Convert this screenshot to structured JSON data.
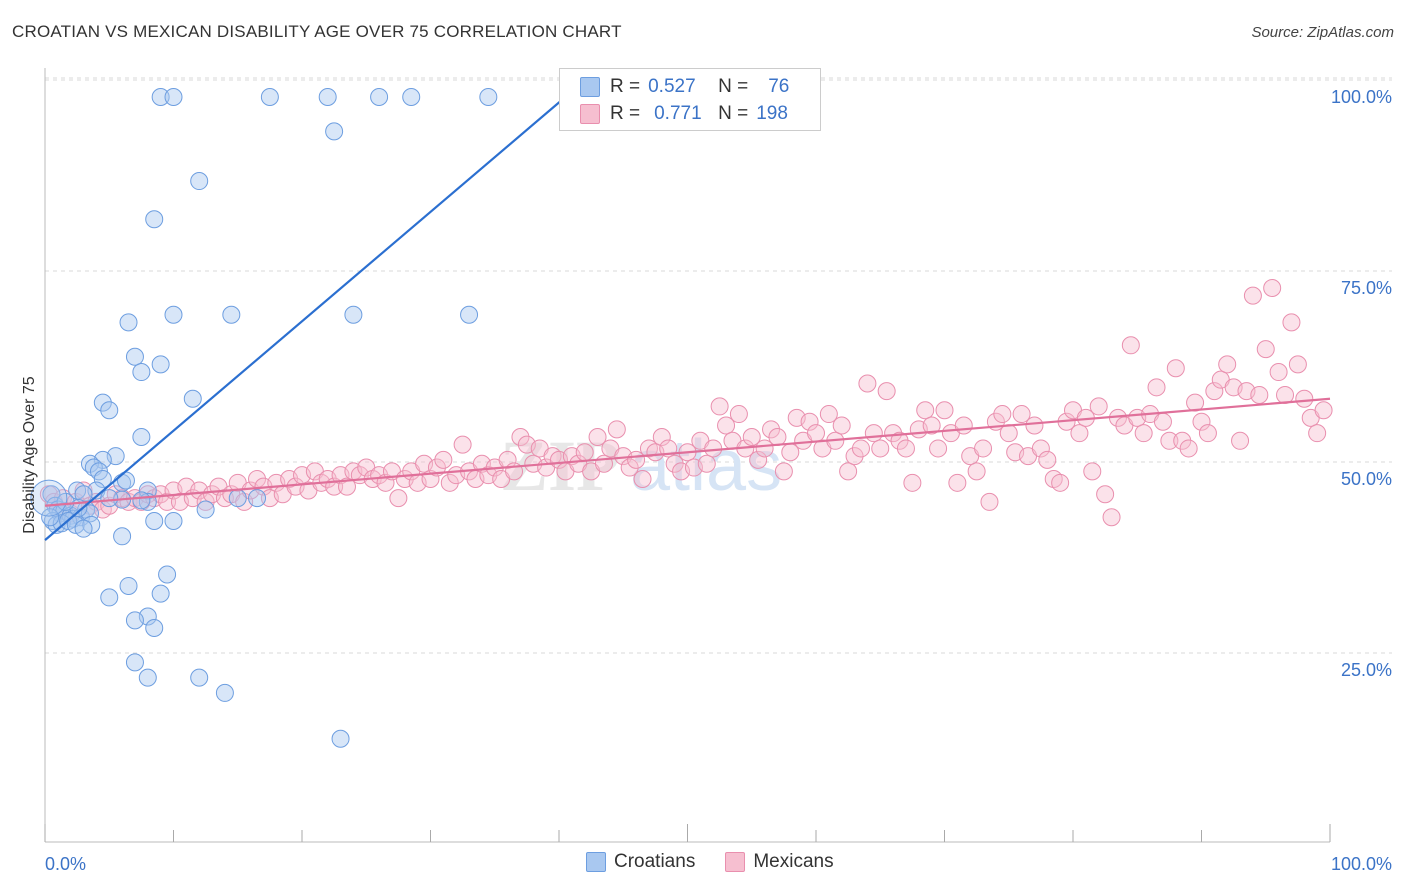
{
  "title": "CROATIAN VS MEXICAN DISABILITY AGE OVER 75 CORRELATION CHART",
  "source_label": "Source: ZipAtlas.com",
  "watermark": {
    "zip": "ZIP",
    "atlas": "atlas"
  },
  "colors": {
    "croatian_fill": "#a9c8f0",
    "croatian_stroke": "#6d9ee0",
    "croatian_line": "#2b6fd0",
    "mexican_fill": "#f6bfd0",
    "mexican_stroke": "#e98fae",
    "mexican_line": "#e0709a",
    "value_text": "#3b73c7",
    "grid": "#d8d8d8"
  },
  "legend": {
    "rows": [
      {
        "r_label": "R =",
        "r_value": "0.527",
        "n_label": "N =",
        "n_value": "76"
      },
      {
        "r_label": "R =",
        "r_value": "0.771",
        "n_label": "N =",
        "n_value": "198"
      }
    ]
  },
  "bottom_legend": {
    "croatians": "Croatians",
    "mexicans": "Mexicans"
  },
  "chart_data": {
    "type": "scatter",
    "title": "CROATIAN VS MEXICAN DISABILITY AGE OVER 75 CORRELATION CHART",
    "xlabel": "",
    "ylabel": "Disability Age Over 75",
    "xlim": [
      0,
      100
    ],
    "ylim": [
      0,
      105
    ],
    "x_tick_labels": [
      "0.0%",
      "100.0%"
    ],
    "y_tick_labels": [
      "25.0%",
      "50.0%",
      "75.0%",
      "100.0%"
    ],
    "y_ticks": [
      25,
      50,
      75,
      100
    ],
    "grid": true,
    "legend_position": "top-center",
    "series": [
      {
        "name": "Croatians",
        "r": 0.527,
        "n": 76,
        "trend": {
          "x0": 0,
          "y0": 42,
          "x1": 40.5,
          "y1": 100
        },
        "points": [
          [
            9,
            100
          ],
          [
            10,
            100
          ],
          [
            17.5,
            100
          ],
          [
            22,
            100
          ],
          [
            26,
            100
          ],
          [
            28.5,
            100
          ],
          [
            34.5,
            100
          ],
          [
            22.5,
            95.5
          ],
          [
            12,
            89
          ],
          [
            8.5,
            84
          ],
          [
            10,
            71.5
          ],
          [
            14.5,
            71.5
          ],
          [
            24,
            71.5
          ],
          [
            33,
            71.5
          ],
          [
            6.5,
            70.5
          ],
          [
            7,
            66
          ],
          [
            9,
            65
          ],
          [
            7.5,
            64
          ],
          [
            11.5,
            60.5
          ],
          [
            4.5,
            60
          ],
          [
            5,
            59
          ],
          [
            7.5,
            55.5
          ],
          [
            5.5,
            53
          ],
          [
            4.5,
            52.5
          ],
          [
            3.5,
            52
          ],
          [
            3.8,
            51.5
          ],
          [
            4.2,
            51
          ],
          [
            6,
            49.5
          ],
          [
            4.5,
            50
          ],
          [
            6.3,
            49.8
          ],
          [
            4,
            48.5
          ],
          [
            8,
            48.5
          ],
          [
            2.5,
            48.5
          ],
          [
            3,
            48
          ],
          [
            16.5,
            47.5
          ],
          [
            15,
            47.5
          ],
          [
            12.5,
            46
          ],
          [
            0.5,
            48
          ],
          [
            0.8,
            46.5
          ],
          [
            1,
            46
          ],
          [
            1.2,
            45.5
          ],
          [
            1.5,
            45.8
          ],
          [
            2,
            45.2
          ],
          [
            2.2,
            44.8
          ],
          [
            2.8,
            45
          ],
          [
            3.2,
            46
          ],
          [
            3.5,
            45.5
          ],
          [
            0.6,
            44.5
          ],
          [
            0.9,
            44
          ],
          [
            1.3,
            44.2
          ],
          [
            1.8,
            44.5
          ],
          [
            2.4,
            44
          ],
          [
            3.6,
            44
          ],
          [
            0.4,
            45
          ],
          [
            2.6,
            46.2
          ],
          [
            1.6,
            47
          ],
          [
            8,
            47
          ],
          [
            7.5,
            47.2
          ],
          [
            6,
            47.3
          ],
          [
            5,
            47.5
          ],
          [
            8.5,
            44.5
          ],
          [
            10,
            44.5
          ],
          [
            3,
            43.5
          ],
          [
            6,
            42.5
          ],
          [
            9.5,
            37.5
          ],
          [
            6.5,
            36
          ],
          [
            5,
            34.5
          ],
          [
            9,
            35
          ],
          [
            8,
            32
          ],
          [
            7,
            31.5
          ],
          [
            8.5,
            30.5
          ],
          [
            7,
            26
          ],
          [
            8,
            24
          ],
          [
            12,
            24
          ],
          [
            14,
            22
          ],
          [
            23,
            16
          ]
        ]
      },
      {
        "name": "Mexicans",
        "r": 0.771,
        "n": 198,
        "trend": {
          "x0": 0,
          "y0": 46.5,
          "x1": 100,
          "y1": 60.5
        },
        "points": [
          [
            0.3,
            48
          ],
          [
            0.7,
            47
          ],
          [
            1,
            46
          ],
          [
            1.4,
            47.5
          ],
          [
            2,
            45.5
          ],
          [
            2.4,
            47
          ],
          [
            3,
            48.5
          ],
          [
            3.5,
            46.5
          ],
          [
            4,
            47
          ],
          [
            4.5,
            46
          ],
          [
            5,
            46.5
          ],
          [
            5.5,
            48
          ],
          [
            6,
            47.5
          ],
          [
            6.5,
            47
          ],
          [
            7,
            47.5
          ],
          [
            7.5,
            47
          ],
          [
            8,
            48
          ],
          [
            8.5,
            47.5
          ],
          [
            9,
            48
          ],
          [
            9.5,
            47
          ],
          [
            10,
            48.5
          ],
          [
            10.5,
            47
          ],
          [
            11,
            49
          ],
          [
            11.5,
            47.5
          ],
          [
            12,
            48.5
          ],
          [
            12.5,
            47
          ],
          [
            13,
            48
          ],
          [
            13.5,
            49
          ],
          [
            14,
            47.5
          ],
          [
            14.5,
            48
          ],
          [
            15,
            49.5
          ],
          [
            15.5,
            47
          ],
          [
            16,
            48.5
          ],
          [
            16.5,
            50
          ],
          [
            17,
            49
          ],
          [
            17.5,
            47.5
          ],
          [
            18,
            49.5
          ],
          [
            18.5,
            48
          ],
          [
            19,
            50
          ],
          [
            19.5,
            49
          ],
          [
            20,
            50.5
          ],
          [
            20.5,
            48.5
          ],
          [
            21,
            51
          ],
          [
            21.5,
            49.5
          ],
          [
            22,
            50
          ],
          [
            22.5,
            49
          ],
          [
            23,
            50.5
          ],
          [
            23.5,
            49
          ],
          [
            24,
            51
          ],
          [
            24.5,
            50.5
          ],
          [
            25,
            51.5
          ],
          [
            25.5,
            50
          ],
          [
            26,
            50.5
          ],
          [
            26.5,
            49.5
          ],
          [
            27,
            51
          ],
          [
            27.5,
            47.5
          ],
          [
            28,
            50
          ],
          [
            28.5,
            51
          ],
          [
            29,
            49.5
          ],
          [
            29.5,
            52
          ],
          [
            30,
            50
          ],
          [
            30.5,
            51.5
          ],
          [
            31,
            52.5
          ],
          [
            31.5,
            49.5
          ],
          [
            32,
            50.5
          ],
          [
            32.5,
            54.5
          ],
          [
            33,
            51
          ],
          [
            33.5,
            50
          ],
          [
            34,
            52
          ],
          [
            34.5,
            50.5
          ],
          [
            35,
            51.5
          ],
          [
            35.5,
            50
          ],
          [
            36,
            52.5
          ],
          [
            36.5,
            51
          ],
          [
            37,
            55.5
          ],
          [
            37.5,
            54.5
          ],
          [
            38,
            52
          ],
          [
            38.5,
            54
          ],
          [
            39,
            51.5
          ],
          [
            39.5,
            53
          ],
          [
            40,
            52.5
          ],
          [
            40.5,
            51
          ],
          [
            41,
            53
          ],
          [
            41.5,
            52
          ],
          [
            42,
            53.5
          ],
          [
            42.5,
            51
          ],
          [
            43,
            55.5
          ],
          [
            43.5,
            52
          ],
          [
            44,
            54
          ],
          [
            44.5,
            56.5
          ],
          [
            45,
            53
          ],
          [
            45.5,
            51.5
          ],
          [
            46,
            52.5
          ],
          [
            46.5,
            50
          ],
          [
            47,
            54
          ],
          [
            47.5,
            53.5
          ],
          [
            48,
            55.5
          ],
          [
            48.5,
            54
          ],
          [
            49,
            52
          ],
          [
            49.5,
            51
          ],
          [
            50,
            53.5
          ],
          [
            50.5,
            51.5
          ],
          [
            51,
            55
          ],
          [
            51.5,
            52
          ],
          [
            52,
            54
          ],
          [
            52.5,
            59.5
          ],
          [
            53,
            57
          ],
          [
            53.5,
            55
          ],
          [
            54,
            58.5
          ],
          [
            54.5,
            54
          ],
          [
            55,
            55.5
          ],
          [
            55.5,
            52.5
          ],
          [
            56,
            54
          ],
          [
            56.5,
            56.5
          ],
          [
            57,
            55.5
          ],
          [
            57.5,
            51
          ],
          [
            58,
            53.5
          ],
          [
            58.5,
            58
          ],
          [
            59,
            55
          ],
          [
            59.5,
            57.5
          ],
          [
            60,
            56
          ],
          [
            60.5,
            54
          ],
          [
            61,
            58.5
          ],
          [
            61.5,
            55
          ],
          [
            62,
            57
          ],
          [
            62.5,
            51
          ],
          [
            63,
            53
          ],
          [
            63.5,
            54
          ],
          [
            64,
            62.5
          ],
          [
            64.5,
            56
          ],
          [
            65,
            54
          ],
          [
            65.5,
            61.5
          ],
          [
            66,
            56
          ],
          [
            66.5,
            55
          ],
          [
            67,
            54
          ],
          [
            67.5,
            49.5
          ],
          [
            68,
            56.5
          ],
          [
            68.5,
            59
          ],
          [
            69,
            57
          ],
          [
            69.5,
            54
          ],
          [
            70,
            59
          ],
          [
            70.5,
            56
          ],
          [
            71,
            49.5
          ],
          [
            71.5,
            57
          ],
          [
            72,
            53
          ],
          [
            72.5,
            51
          ],
          [
            73,
            54
          ],
          [
            73.5,
            47
          ],
          [
            74,
            57.5
          ],
          [
            74.5,
            58.5
          ],
          [
            75,
            56
          ],
          [
            75.5,
            53.5
          ],
          [
            76,
            58.5
          ],
          [
            76.5,
            53
          ],
          [
            77,
            57
          ],
          [
            77.5,
            54
          ],
          [
            78,
            52.5
          ],
          [
            78.5,
            50
          ],
          [
            79,
            49.5
          ],
          [
            79.5,
            57.5
          ],
          [
            80,
            59
          ],
          [
            80.5,
            56
          ],
          [
            81,
            58
          ],
          [
            81.5,
            51
          ],
          [
            82,
            59.5
          ],
          [
            82.5,
            48
          ],
          [
            83,
            45
          ],
          [
            83.5,
            58
          ],
          [
            84,
            57
          ],
          [
            84.5,
            67.5
          ],
          [
            85,
            58
          ],
          [
            85.5,
            56
          ],
          [
            86,
            58.5
          ],
          [
            86.5,
            62
          ],
          [
            87,
            57.5
          ],
          [
            87.5,
            55
          ],
          [
            88,
            64.5
          ],
          [
            88.5,
            55
          ],
          [
            89,
            54
          ],
          [
            89.5,
            60
          ],
          [
            90,
            57.5
          ],
          [
            90.5,
            56
          ],
          [
            91,
            61.5
          ],
          [
            91.5,
            63
          ],
          [
            92,
            65
          ],
          [
            92.5,
            62
          ],
          [
            93,
            55
          ],
          [
            93.5,
            61.5
          ],
          [
            94,
            74
          ],
          [
            94.5,
            61
          ],
          [
            95,
            67
          ],
          [
            95.5,
            75
          ],
          [
            96,
            64
          ],
          [
            96.5,
            61
          ],
          [
            97,
            70.5
          ],
          [
            97.5,
            65
          ],
          [
            98,
            60.5
          ],
          [
            98.5,
            58
          ],
          [
            99,
            56
          ],
          [
            99.5,
            59
          ]
        ]
      }
    ]
  }
}
